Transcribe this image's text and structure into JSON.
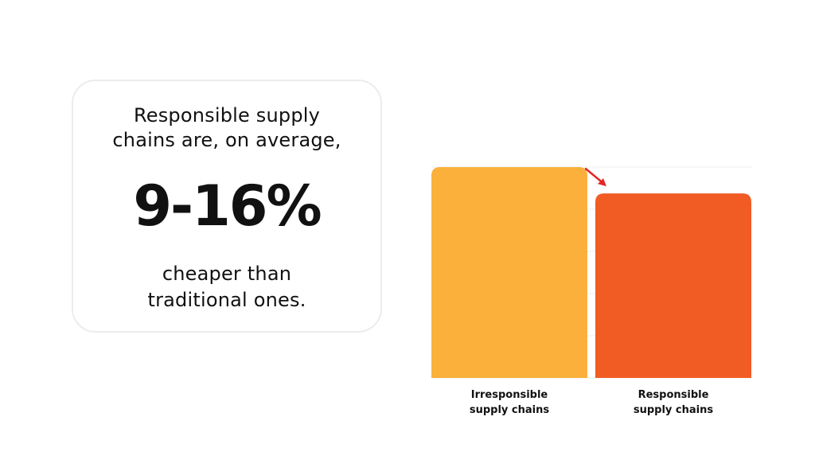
{
  "stat_card": {
    "lead_lines": [
      "Responsible supply",
      "chains are, on average,"
    ],
    "figure": "9-16%",
    "tail_lines": [
      "cheaper than",
      "traditional ones."
    ]
  },
  "chart_data": {
    "type": "bar",
    "categories": [
      "Irresponsible supply chains",
      "Responsible supply chains"
    ],
    "category_label_lines": [
      [
        "Irresponsible",
        "supply chains"
      ],
      [
        "Responsible",
        "supply chains"
      ]
    ],
    "values": [
      100,
      87.5
    ],
    "ylim": [
      0,
      100
    ],
    "colors": [
      "#fab03b",
      "#f15c25"
    ],
    "grid": "horizontal",
    "annotation": {
      "type": "arrow-down",
      "color": "#e3262a"
    }
  }
}
